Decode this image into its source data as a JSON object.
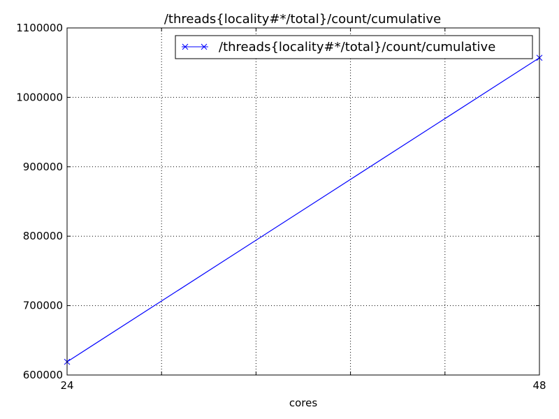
{
  "chart_data": {
    "type": "line",
    "title": "/threads{locality#*/total}/count/cumulative",
    "xlabel": "cores",
    "ylabel": "",
    "x": [
      24,
      48
    ],
    "xlim": [
      24,
      48
    ],
    "ylim": [
      600000,
      1100000
    ],
    "xticks": [
      24,
      48
    ],
    "yticks": [
      600000,
      700000,
      800000,
      900000,
      1000000,
      1100000
    ],
    "x_grid_values": [
      28.8,
      33.6,
      38.4,
      43.2
    ],
    "grid": true,
    "legend_position": "top-right",
    "series": [
      {
        "name": "/threads{locality#*/total}/count/cumulative",
        "values": [
          619000,
          1057000
        ],
        "color": "#0000ff",
        "marker": "x"
      }
    ]
  }
}
